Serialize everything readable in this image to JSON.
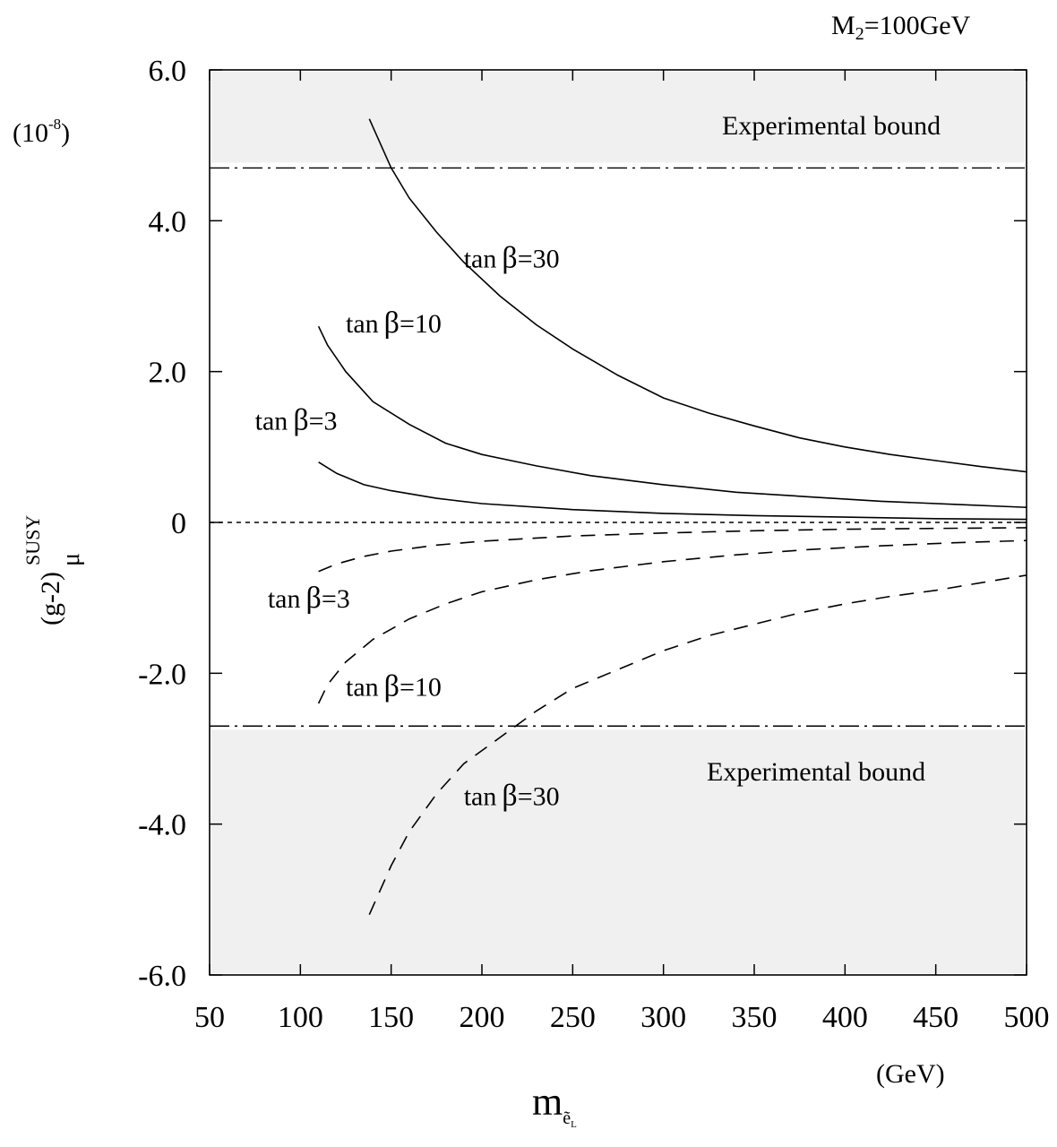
{
  "chart_data": {
    "type": "line",
    "title": "",
    "top_label": {
      "main": "M",
      "sub": "2",
      "rest": "=100GeV"
    },
    "y_unit": {
      "base": "(10",
      "exp": "-8",
      "close": ")"
    },
    "ylabel": {
      "main": "(g-2)",
      "sub": "μ",
      "sup": "SUSY"
    },
    "xlabel": {
      "main": "m",
      "sub": "ẽ",
      "subsub": "L"
    },
    "x_unit": "(GeV)",
    "xlim": [
      50,
      500
    ],
    "ylim": [
      -6.0,
      6.0
    ],
    "xticks": [
      50,
      100,
      150,
      200,
      250,
      300,
      350,
      400,
      450,
      500
    ],
    "xtick_labels": [
      "50",
      "100",
      "150",
      "200",
      "250",
      "300",
      "350",
      "400",
      "450",
      "500"
    ],
    "yticks": [
      -6.0,
      -4.0,
      -2.0,
      0,
      2.0,
      4.0,
      6.0
    ],
    "ytick_labels": [
      "-6.0",
      "-4.0",
      "-2.0",
      "0",
      "2.0",
      "4.0",
      "6.0"
    ],
    "bounds": [
      {
        "label": "Experimental bound",
        "from": 4.7,
        "to": 6.0
      },
      {
        "label": "Experimental bound",
        "from": -6.0,
        "to": -2.7
      }
    ],
    "series": [
      {
        "name": "tanβ=30",
        "style": "solid",
        "x": [
          138,
          150,
          160,
          175,
          190,
          210,
          230,
          250,
          275,
          300,
          325,
          350,
          375,
          400,
          425,
          450,
          475,
          500
        ],
        "y": [
          5.35,
          4.7,
          4.3,
          3.85,
          3.45,
          3.0,
          2.62,
          2.3,
          1.95,
          1.65,
          1.45,
          1.28,
          1.12,
          1.0,
          0.9,
          0.82,
          0.74,
          0.67
        ]
      },
      {
        "name": "tanβ=10",
        "style": "solid",
        "x": [
          110,
          115,
          125,
          140,
          160,
          180,
          200,
          230,
          260,
          300,
          340,
          380,
          420,
          460,
          500
        ],
        "y": [
          2.6,
          2.35,
          2.0,
          1.6,
          1.3,
          1.05,
          0.9,
          0.75,
          0.62,
          0.5,
          0.4,
          0.34,
          0.28,
          0.24,
          0.2
        ]
      },
      {
        "name": "tanβ=3",
        "style": "solid",
        "x": [
          110,
          120,
          135,
          150,
          175,
          200,
          250,
          300,
          350,
          400,
          450,
          500
        ],
        "y": [
          0.8,
          0.65,
          0.5,
          0.42,
          0.32,
          0.25,
          0.17,
          0.12,
          0.09,
          0.07,
          0.05,
          0.04
        ]
      },
      {
        "name": "tanβ=3",
        "style": "dashed",
        "x": [
          110,
          120,
          135,
          150,
          175,
          200,
          250,
          300,
          350,
          400,
          450,
          500
        ],
        "y": [
          -0.65,
          -0.55,
          -0.45,
          -0.38,
          -0.3,
          -0.25,
          -0.18,
          -0.14,
          -0.11,
          -0.09,
          -0.08,
          -0.07
        ]
      },
      {
        "name": "tanβ=10",
        "style": "dashed",
        "x": [
          110,
          115,
          125,
          140,
          160,
          180,
          200,
          230,
          260,
          300,
          340,
          380,
          420,
          460,
          500
        ],
        "y": [
          -2.4,
          -2.15,
          -1.85,
          -1.55,
          -1.28,
          -1.08,
          -0.92,
          -0.76,
          -0.64,
          -0.52,
          -0.43,
          -0.36,
          -0.31,
          -0.27,
          -0.24
        ]
      },
      {
        "name": "tanβ=30",
        "style": "dashed",
        "x": [
          138,
          150,
          160,
          175,
          190,
          210,
          230,
          250,
          275,
          300,
          325,
          350,
          375,
          400,
          425,
          450,
          475,
          500
        ],
        "y": [
          -5.2,
          -4.55,
          -4.1,
          -3.6,
          -3.2,
          -2.85,
          -2.5,
          -2.2,
          -1.95,
          -1.7,
          -1.5,
          -1.35,
          -1.2,
          -1.08,
          -0.98,
          -0.9,
          -0.8,
          -0.7
        ]
      }
    ],
    "curve_labels": [
      {
        "text": "tan",
        "beta": "β",
        "val": "=30",
        "x": 190,
        "y": 3.38
      },
      {
        "text": "tan",
        "beta": "β",
        "val": "=10",
        "x": 125,
        "y": 2.52
      },
      {
        "text": "tan",
        "beta": "β",
        "val": "=3",
        "x": 75,
        "y": 1.23
      },
      {
        "text": "tan",
        "beta": "β",
        "val": "=3",
        "x": 82,
        "y": -1.13
      },
      {
        "text": "tan",
        "beta": "β",
        "val": "=10",
        "x": 125,
        "y": -2.3
      },
      {
        "text": "tan",
        "beta": "β",
        "val": "=30",
        "x": 190,
        "y": -3.75
      }
    ]
  }
}
